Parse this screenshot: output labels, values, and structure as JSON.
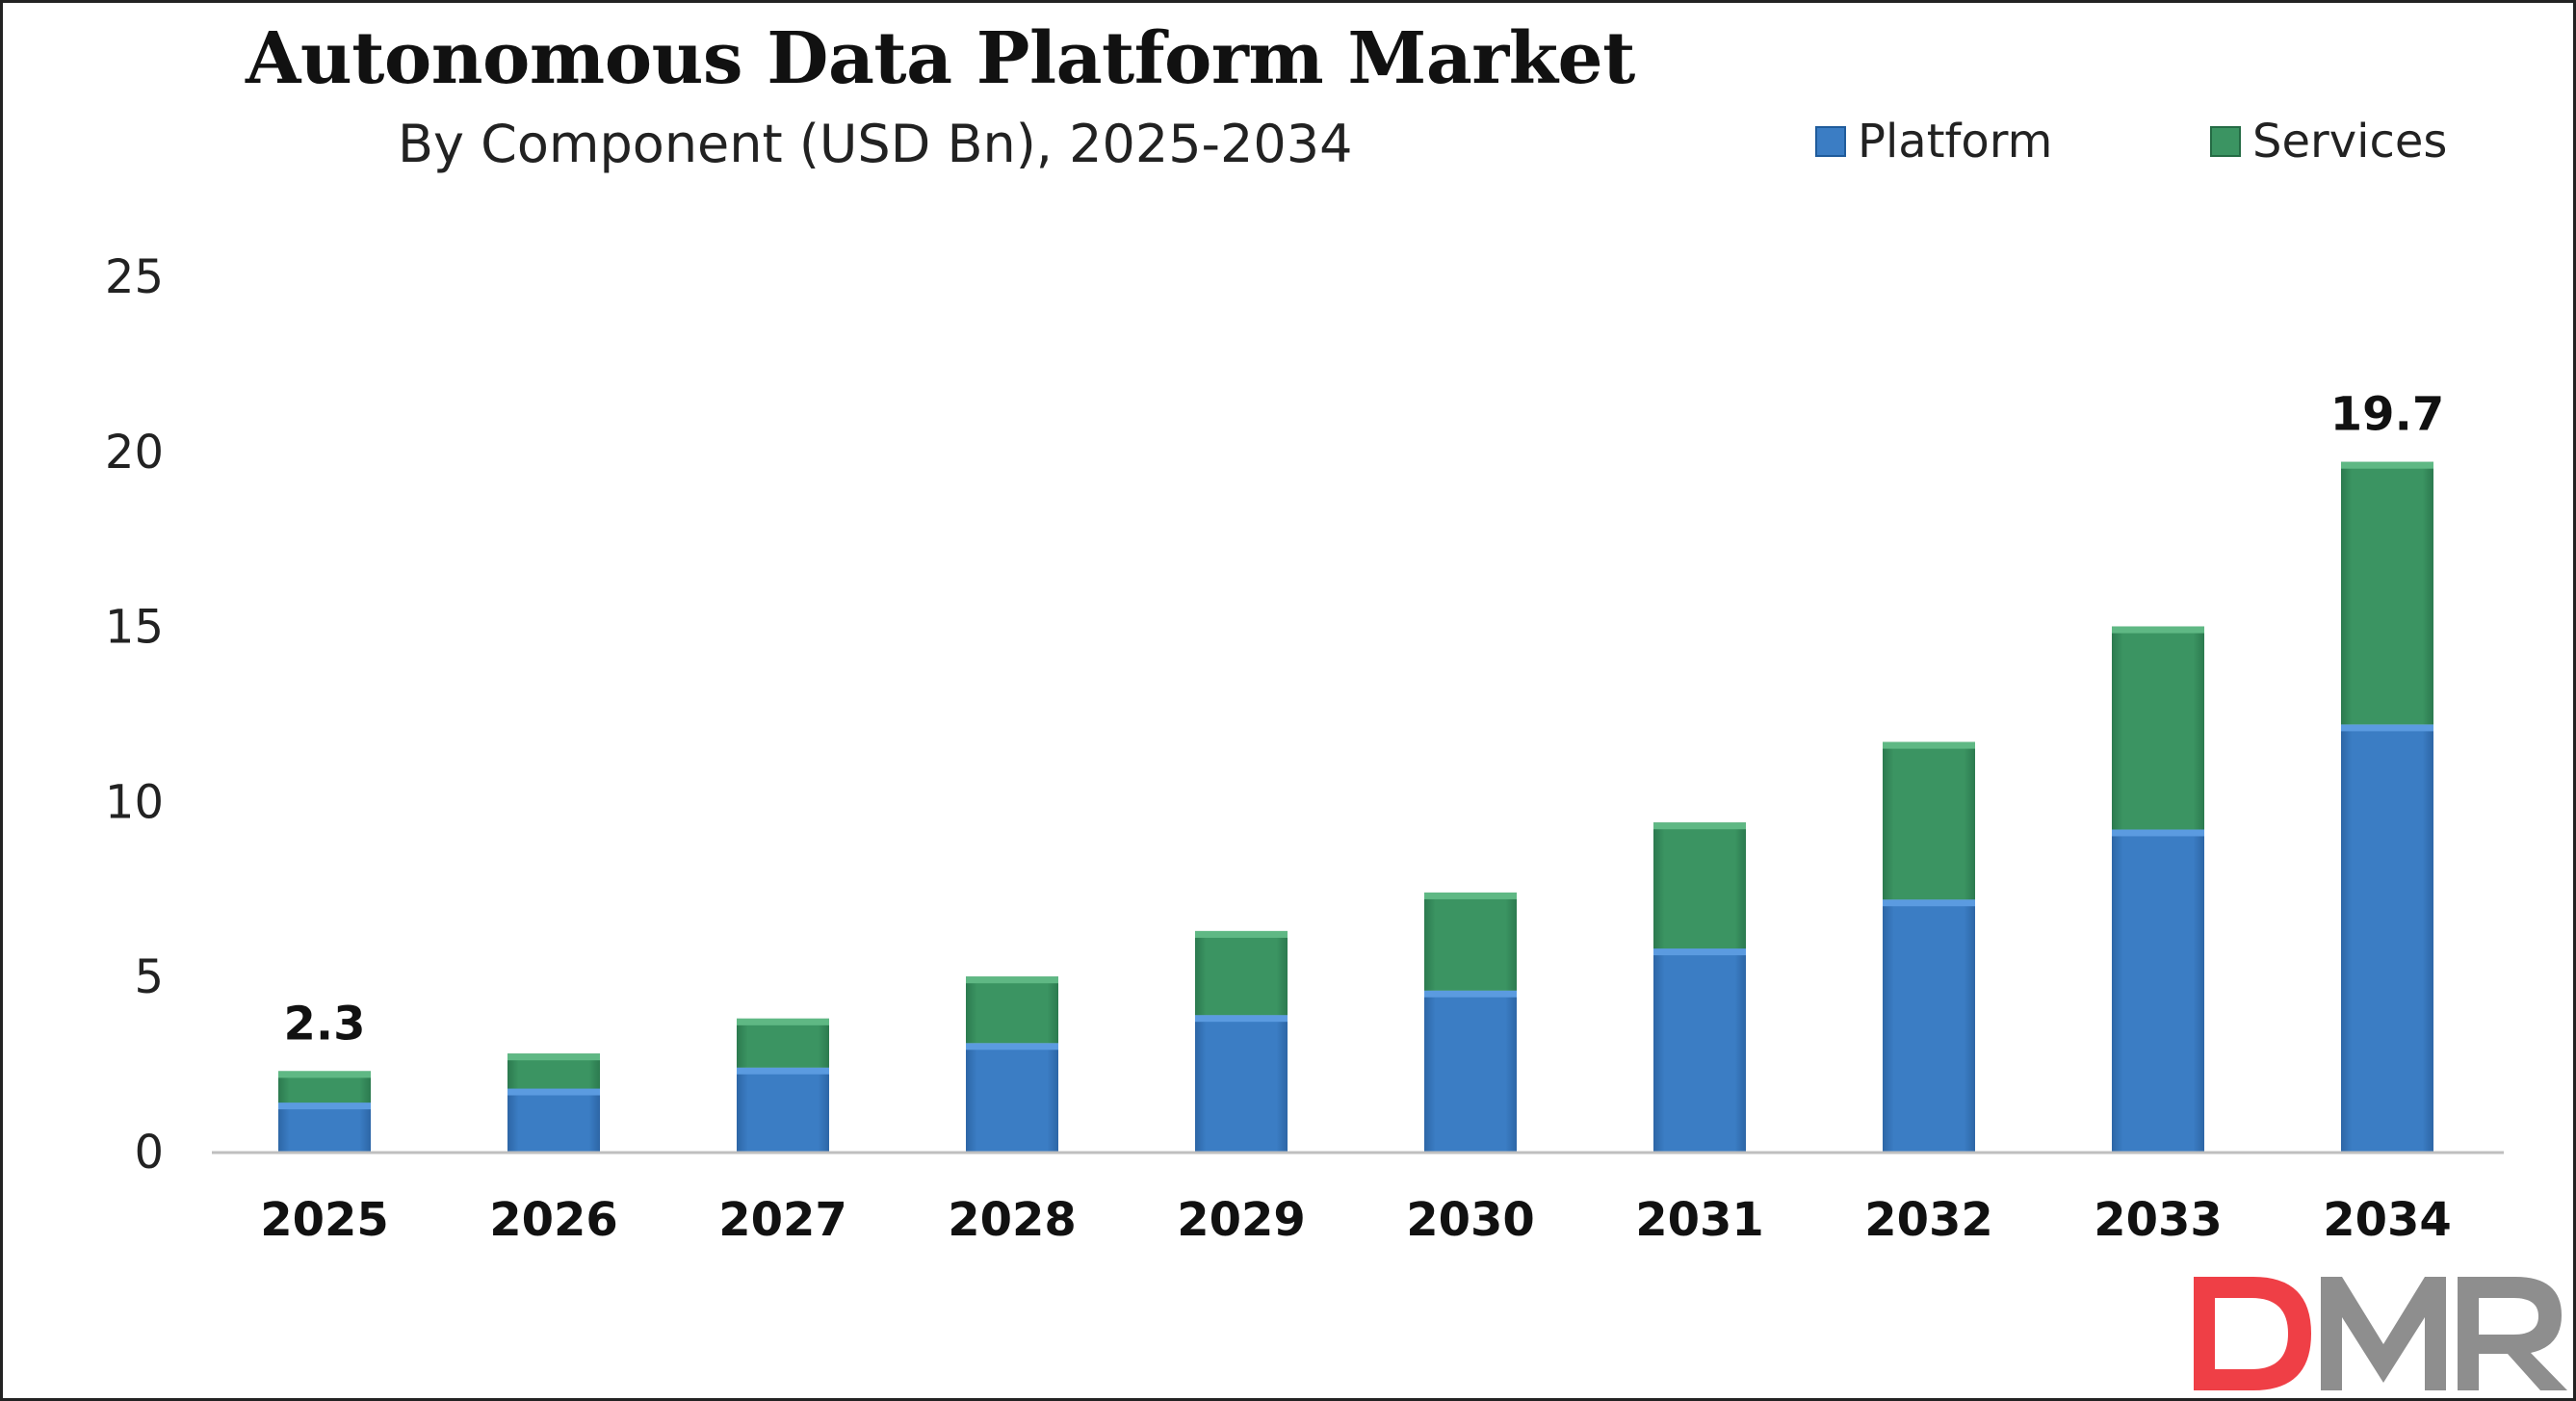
{
  "chart_data": {
    "type": "bar",
    "stacked": true,
    "title": "Autonomous Data Platform Market",
    "subtitle": "By Component (USD Bn), 2025-2034",
    "categories": [
      "2025",
      "2026",
      "2027",
      "2028",
      "2029",
      "2030",
      "2031",
      "2032",
      "2033",
      "2034"
    ],
    "series": [
      {
        "name": "Platform",
        "values": [
          1.4,
          1.8,
          2.4,
          3.1,
          3.9,
          4.6,
          5.8,
          7.2,
          9.2,
          12.2
        ],
        "color": "#3b7dc4"
      },
      {
        "name": "Services",
        "values": [
          0.9,
          1.0,
          1.4,
          1.9,
          2.4,
          2.8,
          3.6,
          4.5,
          5.8,
          7.5
        ],
        "color": "#3b9462"
      }
    ],
    "totals_labels": [
      {
        "category": "2025",
        "text": "2.3"
      },
      {
        "category": "2034",
        "text": "19.7"
      }
    ],
    "ylim": [
      0,
      25
    ],
    "yticks": [
      "0",
      "5",
      "10",
      "15",
      "20",
      "25"
    ],
    "grid": false,
    "legend_position": "top-right",
    "xlabel": "",
    "ylabel": ""
  },
  "logo": {
    "text": "DMR",
    "colors": [
      "#ef3f46",
      "#8e8e8e"
    ]
  }
}
